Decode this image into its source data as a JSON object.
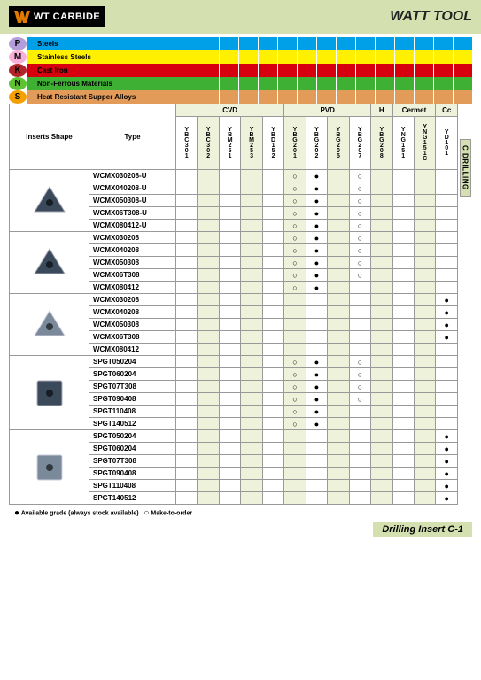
{
  "header": {
    "logo_text": "WT CARBIDE",
    "brand": "WATT TOOL"
  },
  "colors": {
    "page_bg": "#ffffff",
    "band_bg": "#d4e0b0",
    "alt_col": "#eef2da",
    "border": "#999999"
  },
  "side_tab": "C DRILLING",
  "materials": [
    {
      "code": "P",
      "name": "Steels",
      "label_bg": "#b39ddb",
      "row_color": "#00a0e9",
      "second_color": "#00a0e9"
    },
    {
      "code": "M",
      "name": "Stainless Steels",
      "label_bg": "#f8b0d8",
      "row_color": "#fff000",
      "second_color": "#fff000"
    },
    {
      "code": "K",
      "name": "Cast Iron",
      "label_bg": "#b3252a",
      "row_color": "#d7000f",
      "second_color": "#d7000f"
    },
    {
      "code": "N",
      "name": "Non-Ferrous Materials",
      "label_bg": "#5ec232",
      "row_color": "#3eb134",
      "second_color": "#3eb134"
    },
    {
      "code": "S",
      "name": "Heat Resistant Supper Alloys",
      "label_bg": "#f5a000",
      "row_color": "#e39b5a",
      "second_color": "#e39b5a"
    }
  ],
  "col_groups": [
    {
      "label": "CVD",
      "span": 5
    },
    {
      "label": "PVD",
      "span": 4
    },
    {
      "label": "H",
      "span": 1
    },
    {
      "label": "Cermet",
      "span": 2
    },
    {
      "label": "Cc",
      "span": 1
    }
  ],
  "grade_codes": [
    "YBC301",
    "YBC302",
    "YBM251",
    "YBM253",
    "YBD152",
    "YBG201",
    "YBG202",
    "YBG205",
    "YBG207",
    "YBG208",
    "YNG151",
    "YNG151C",
    "YD101"
  ],
  "head": {
    "shape": "Inserts Shape",
    "type": "Type"
  },
  "alt_cols": [
    0,
    2,
    4,
    6,
    8,
    10,
    12
  ],
  "sections": [
    {
      "shape": "triangle-dark",
      "rows": [
        {
          "type": "WCMX030208-U",
          "marks": {
            "6": "○",
            "7": "●",
            "9": "○"
          }
        },
        {
          "type": "WCMX040208-U",
          "marks": {
            "6": "○",
            "7": "●",
            "9": "○"
          }
        },
        {
          "type": "WCMX050308-U",
          "marks": {
            "6": "○",
            "7": "●",
            "9": "○"
          }
        },
        {
          "type": "WCMX06T308-U",
          "marks": {
            "6": "○",
            "7": "●",
            "9": "○"
          }
        },
        {
          "type": "WCMX080412-U",
          "marks": {
            "6": "○",
            "7": "●",
            "9": "○"
          }
        }
      ]
    },
    {
      "shape": "triangle-dark",
      "rows": [
        {
          "type": "WCMX030208",
          "marks": {
            "6": "○",
            "7": "●",
            "9": "○"
          }
        },
        {
          "type": "WCMX040208",
          "marks": {
            "6": "○",
            "7": "●",
            "9": "○"
          }
        },
        {
          "type": "WCMX050308",
          "marks": {
            "6": "○",
            "7": "●",
            "9": "○"
          }
        },
        {
          "type": "WCMX06T308",
          "marks": {
            "6": "○",
            "7": "●",
            "9": "○"
          }
        },
        {
          "type": "WCMX080412",
          "marks": {
            "6": "○",
            "7": "●"
          }
        }
      ]
    },
    {
      "shape": "triangle-light",
      "rows": [
        {
          "type": "WCMX030208",
          "marks": {
            "13": "●"
          }
        },
        {
          "type": "WCMX040208",
          "marks": {
            "13": "●"
          }
        },
        {
          "type": "WCMX050308",
          "marks": {
            "13": "●"
          }
        },
        {
          "type": "WCMX06T308",
          "marks": {
            "13": "●"
          }
        },
        {
          "type": "WCMX080412",
          "marks": {}
        }
      ]
    },
    {
      "shape": "square-dark",
      "rows": [
        {
          "type": "SPGT050204",
          "marks": {
            "6": "○",
            "7": "●",
            "9": "○"
          }
        },
        {
          "type": "SPGT060204",
          "marks": {
            "6": "○",
            "7": "●",
            "9": "○"
          }
        },
        {
          "type": "SPGT07T308",
          "marks": {
            "6": "○",
            "7": "●",
            "9": "○"
          }
        },
        {
          "type": "SPGT090408",
          "marks": {
            "6": "○",
            "7": "●",
            "9": "○"
          }
        },
        {
          "type": "SPGT110408",
          "marks": {
            "6": "○",
            "7": "●"
          }
        },
        {
          "type": "SPGT140512",
          "marks": {
            "6": "○",
            "7": "●"
          }
        }
      ]
    },
    {
      "shape": "square-light",
      "rows": [
        {
          "type": "SPGT050204",
          "marks": {
            "13": "●"
          }
        },
        {
          "type": "SPGT060204",
          "marks": {
            "13": "●"
          }
        },
        {
          "type": "SPGT07T308",
          "marks": {
            "13": "●"
          }
        },
        {
          "type": "SPGT090408",
          "marks": {
            "13": "●"
          }
        },
        {
          "type": "SPGT110408",
          "marks": {
            "13": "●"
          }
        },
        {
          "type": "SPGT140512",
          "marks": {
            "13": "●"
          }
        }
      ]
    }
  ],
  "legend": {
    "filled": "●",
    "filled_text": "Available grade (always stock available)",
    "open": "○",
    "open_text": "Make-to-order"
  },
  "footer": "Drilling Insert  C-1",
  "shape_svgs": {
    "triangle-dark": {
      "fill": "#3a4a5a",
      "stroke": "#aab",
      "kind": "tri"
    },
    "triangle-light": {
      "fill": "#7a8a9a",
      "stroke": "#ccd",
      "kind": "tri"
    },
    "square-dark": {
      "fill": "#3a4a5a",
      "stroke": "#aab",
      "kind": "sq"
    },
    "square-light": {
      "fill": "#7a8a9a",
      "stroke": "#ccd",
      "kind": "sq"
    }
  }
}
